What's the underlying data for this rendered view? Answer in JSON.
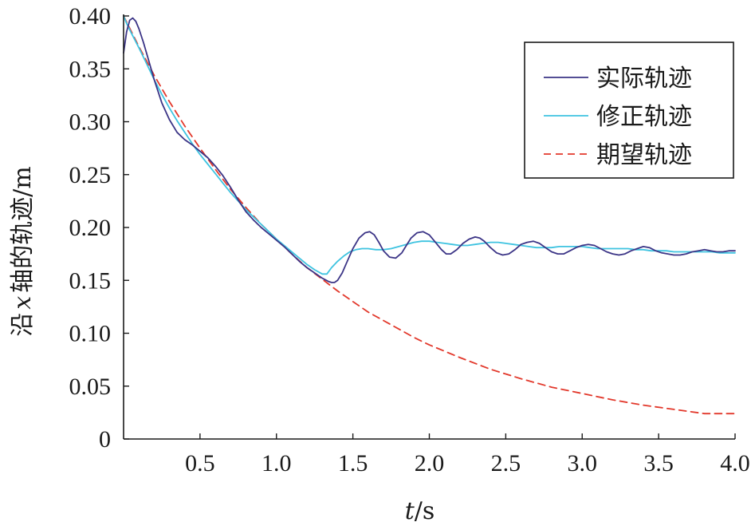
{
  "chart_data": {
    "type": "line",
    "xlabel_italic": "t",
    "xlabel_unit": "/s",
    "ylabel_prefix": "沿",
    "ylabel_italic": "x",
    "ylabel_suffix": "轴的轨迹/m",
    "xlim": [
      0,
      4.0
    ],
    "ylim": [
      0,
      0.4
    ],
    "x_ticks": [
      {
        "value": 0.5,
        "label": "0.5"
      },
      {
        "value": 1.0,
        "label": "1.0"
      },
      {
        "value": 1.5,
        "label": "1.5"
      },
      {
        "value": 2.0,
        "label": "2.0"
      },
      {
        "value": 2.5,
        "label": "2.5"
      },
      {
        "value": 3.0,
        "label": "3.0"
      },
      {
        "value": 3.5,
        "label": "3.5"
      },
      {
        "value": 4.0,
        "label": "4.0"
      }
    ],
    "y_ticks": [
      {
        "value": 0,
        "label": "0"
      },
      {
        "value": 0.05,
        "label": "0.05"
      },
      {
        "value": 0.1,
        "label": "0.10"
      },
      {
        "value": 0.15,
        "label": "0.15"
      },
      {
        "value": 0.2,
        "label": "0.20"
      },
      {
        "value": 0.25,
        "label": "0.25"
      },
      {
        "value": 0.3,
        "label": "0.30"
      },
      {
        "value": 0.35,
        "label": "0.35"
      },
      {
        "value": 0.4,
        "label": "0.40"
      }
    ],
    "grid": false,
    "legend_position": "top-right",
    "series": [
      {
        "name": "实际轨迹",
        "color": "#3b3486",
        "dash": "solid",
        "x": [
          0,
          0.02,
          0.04,
          0.06,
          0.08,
          0.1,
          0.13,
          0.16,
          0.2,
          0.25,
          0.3,
          0.35,
          0.4,
          0.45,
          0.5,
          0.55,
          0.6,
          0.65,
          0.7,
          0.75,
          0.8,
          0.85,
          0.9,
          0.95,
          1.0,
          1.05,
          1.1,
          1.15,
          1.2,
          1.25,
          1.3,
          1.34,
          1.36,
          1.38,
          1.4,
          1.43,
          1.46,
          1.5,
          1.54,
          1.58,
          1.61,
          1.64,
          1.67,
          1.7,
          1.74,
          1.78,
          1.82,
          1.85,
          1.88,
          1.92,
          1.96,
          2.0,
          2.04,
          2.08,
          2.11,
          2.14,
          2.18,
          2.22,
          2.26,
          2.3,
          2.33,
          2.36,
          2.4,
          2.44,
          2.48,
          2.52,
          2.56,
          2.6,
          2.64,
          2.68,
          2.72,
          2.76,
          2.8,
          2.84,
          2.88,
          2.92,
          2.96,
          3.0,
          3.04,
          3.08,
          3.12,
          3.16,
          3.2,
          3.24,
          3.28,
          3.32,
          3.36,
          3.4,
          3.44,
          3.48,
          3.52,
          3.56,
          3.6,
          3.64,
          3.68,
          3.72,
          3.76,
          3.8,
          3.84,
          3.88,
          3.92,
          3.96,
          4.0
        ],
        "y": [
          0.365,
          0.385,
          0.396,
          0.398,
          0.395,
          0.388,
          0.375,
          0.36,
          0.34,
          0.318,
          0.302,
          0.29,
          0.283,
          0.278,
          0.272,
          0.266,
          0.258,
          0.249,
          0.238,
          0.226,
          0.215,
          0.207,
          0.2,
          0.194,
          0.188,
          0.182,
          0.175,
          0.168,
          0.162,
          0.157,
          0.152,
          0.149,
          0.148,
          0.148,
          0.15,
          0.157,
          0.167,
          0.18,
          0.19,
          0.195,
          0.196,
          0.193,
          0.186,
          0.178,
          0.172,
          0.171,
          0.176,
          0.183,
          0.19,
          0.195,
          0.196,
          0.193,
          0.186,
          0.179,
          0.175,
          0.175,
          0.179,
          0.185,
          0.189,
          0.191,
          0.19,
          0.187,
          0.181,
          0.176,
          0.174,
          0.175,
          0.179,
          0.184,
          0.186,
          0.187,
          0.185,
          0.181,
          0.177,
          0.175,
          0.175,
          0.178,
          0.181,
          0.183,
          0.184,
          0.183,
          0.18,
          0.177,
          0.175,
          0.174,
          0.175,
          0.178,
          0.18,
          0.182,
          0.181,
          0.178,
          0.176,
          0.175,
          0.174,
          0.174,
          0.175,
          0.177,
          0.178,
          0.179,
          0.178,
          0.177,
          0.177,
          0.178,
          0.178
        ]
      },
      {
        "name": "修正轨迹",
        "color": "#3ec3e0",
        "dash": "solid",
        "x": [
          0,
          0.02,
          0.05,
          0.1,
          0.15,
          0.2,
          0.25,
          0.3,
          0.35,
          0.4,
          0.45,
          0.5,
          0.55,
          0.6,
          0.65,
          0.7,
          0.75,
          0.8,
          0.85,
          0.9,
          0.95,
          1.0,
          1.05,
          1.1,
          1.15,
          1.2,
          1.25,
          1.3,
          1.33,
          1.36,
          1.4,
          1.44,
          1.48,
          1.52,
          1.56,
          1.6,
          1.65,
          1.7,
          1.75,
          1.8,
          1.85,
          1.9,
          1.95,
          2.0,
          2.05,
          2.1,
          2.15,
          2.2,
          2.25,
          2.3,
          2.35,
          2.4,
          2.45,
          2.5,
          2.55,
          2.6,
          2.65,
          2.7,
          2.75,
          2.8,
          2.85,
          2.9,
          2.95,
          3.0,
          3.05,
          3.1,
          3.15,
          3.2,
          3.25,
          3.3,
          3.35,
          3.4,
          3.45,
          3.5,
          3.55,
          3.6,
          3.65,
          3.7,
          3.75,
          3.8,
          3.85,
          3.9,
          3.95,
          4.0
        ],
        "y": [
          0.4,
          0.393,
          0.384,
          0.37,
          0.355,
          0.34,
          0.326,
          0.313,
          0.301,
          0.29,
          0.279,
          0.269,
          0.26,
          0.251,
          0.242,
          0.233,
          0.225,
          0.217,
          0.21,
          0.203,
          0.196,
          0.189,
          0.183,
          0.177,
          0.171,
          0.165,
          0.16,
          0.156,
          0.156,
          0.162,
          0.168,
          0.173,
          0.177,
          0.179,
          0.18,
          0.18,
          0.179,
          0.179,
          0.18,
          0.182,
          0.184,
          0.186,
          0.187,
          0.187,
          0.186,
          0.185,
          0.184,
          0.183,
          0.183,
          0.184,
          0.185,
          0.186,
          0.186,
          0.185,
          0.184,
          0.183,
          0.182,
          0.181,
          0.181,
          0.181,
          0.182,
          0.182,
          0.182,
          0.182,
          0.181,
          0.18,
          0.18,
          0.18,
          0.18,
          0.18,
          0.179,
          0.179,
          0.178,
          0.178,
          0.178,
          0.177,
          0.177,
          0.177,
          0.177,
          0.177,
          0.177,
          0.176,
          0.176,
          0.176
        ]
      },
      {
        "name": "期望轨迹",
        "color": "#e2382b",
        "dash": "dashed",
        "x": [
          0,
          0.1,
          0.2,
          0.3,
          0.4,
          0.5,
          0.6,
          0.7,
          0.8,
          0.9,
          1.0,
          1.1,
          1.2,
          1.3,
          1.4,
          1.5,
          1.6,
          1.7,
          1.8,
          1.9,
          2.0,
          2.2,
          2.4,
          2.6,
          2.8,
          3.0,
          3.2,
          3.4,
          3.6,
          3.8,
          4.0
        ],
        "y": [
          0.4,
          0.371,
          0.344,
          0.319,
          0.296,
          0.275,
          0.255,
          0.236,
          0.219,
          0.203,
          0.189,
          0.175,
          0.162,
          0.151,
          0.14,
          0.13,
          0.12,
          0.112,
          0.104,
          0.096,
          0.089,
          0.077,
          0.066,
          0.057,
          0.049,
          0.043,
          0.037,
          0.032,
          0.028,
          0.024,
          0.024
        ]
      }
    ]
  }
}
